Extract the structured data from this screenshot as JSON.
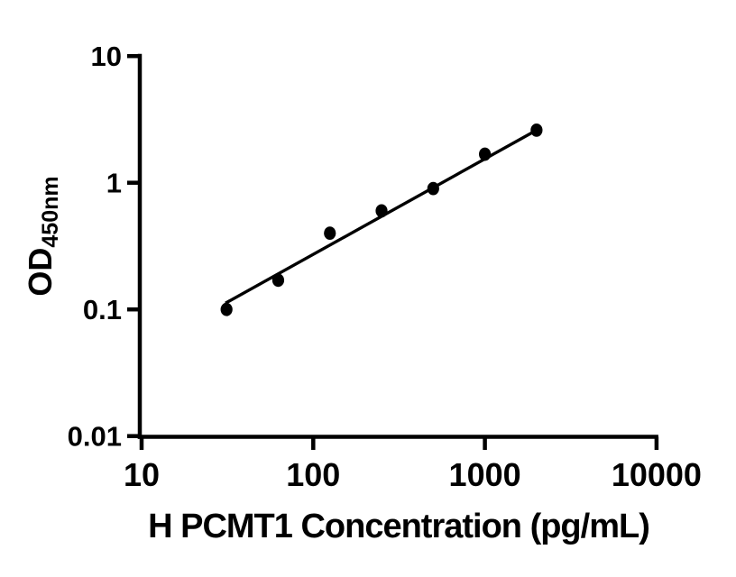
{
  "figure": {
    "background_color": "#ffffff",
    "foreground_color": "#000000"
  },
  "chart_data": {
    "type": "scatter",
    "title": "",
    "xlabel": "H PCMT1 Concentration (pg/mL)",
    "ylabel": "OD450nm",
    "ylabel_main": "OD",
    "ylabel_sub": "450nm",
    "x_scale": "log10",
    "y_scale": "log10",
    "xlim": [
      10,
      10000
    ],
    "ylim": [
      0.01,
      10
    ],
    "x_ticks": [
      10,
      100,
      1000,
      10000
    ],
    "x_tick_labels": [
      "10",
      "100",
      "1000",
      "10000"
    ],
    "y_ticks": [
      10,
      1,
      0.1,
      0.01
    ],
    "y_tick_labels": [
      "10",
      "1",
      "0.1",
      "0.01"
    ],
    "grid": false,
    "legend": false,
    "marker": "filled-circle",
    "marker_color": "#000000",
    "line_color": "#000000",
    "points": [
      {
        "x": 31.25,
        "od": 0.1
      },
      {
        "x": 62.5,
        "od": 0.17
      },
      {
        "x": 125,
        "od": 0.4
      },
      {
        "x": 250,
        "od": 0.6
      },
      {
        "x": 500,
        "od": 0.9
      },
      {
        "x": 1000,
        "od": 1.68
      },
      {
        "x": 2000,
        "od": 2.6
      }
    ],
    "fit_line": {
      "x_start": 30.8,
      "od_start": 0.112,
      "x_end": 2000,
      "od_end": 2.6
    }
  }
}
